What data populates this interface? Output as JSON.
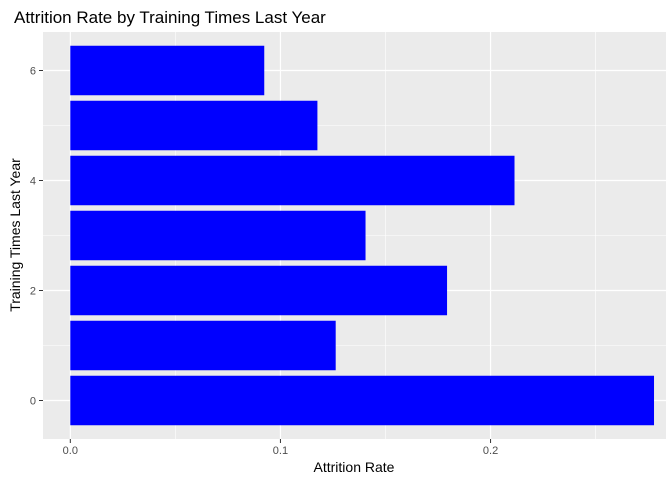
{
  "chart_data": {
    "type": "bar",
    "orientation": "horizontal",
    "title": "Attrition Rate by Training Times Last Year",
    "xlabel": "Attrition Rate",
    "ylabel": "Training Times Last Year",
    "categories": [
      0,
      1,
      2,
      3,
      4,
      5,
      6
    ],
    "values": [
      0.2778,
      0.1263,
      0.1793,
      0.1405,
      0.2114,
      0.1176,
      0.0923
    ],
    "xlim": [
      -0.013,
      0.2835
    ],
    "ylim": [
      -0.7,
      6.7
    ],
    "xticks": [
      0.0,
      0.1,
      0.2
    ],
    "xtick_labels": [
      "0.0",
      "0.1",
      "0.2"
    ],
    "yticks": [
      0,
      2,
      4,
      6
    ],
    "ytick_labels": [
      "0",
      "2",
      "4",
      "6"
    ],
    "grid": true,
    "legend": "none",
    "bar_color": "#0000ff",
    "panel_background": "#ebebeb",
    "grid_color": "#ffffff"
  }
}
